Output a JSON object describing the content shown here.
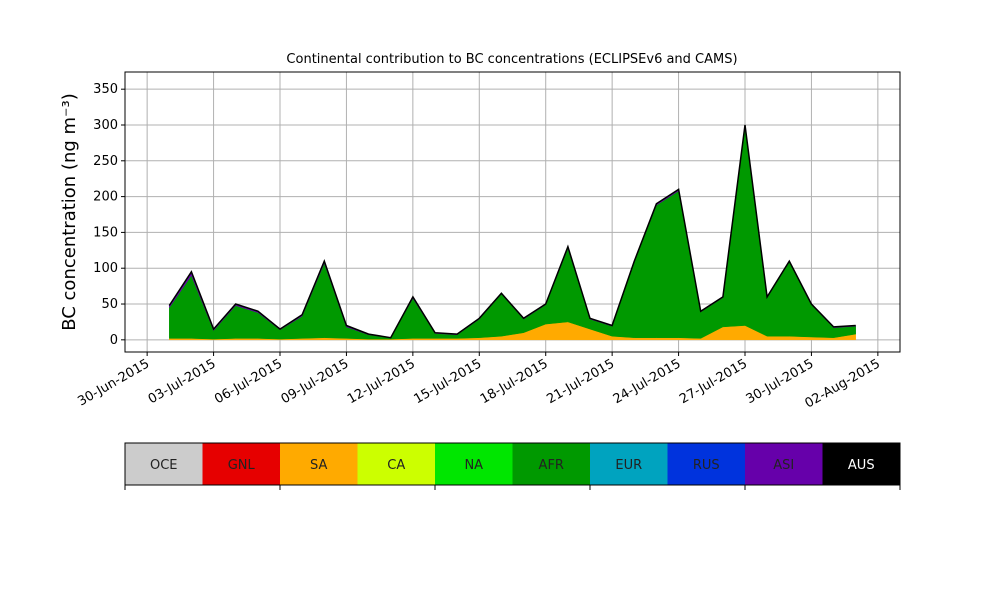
{
  "chart_data": {
    "type": "stacked_area",
    "title": "Continental contribution to BC concentrations (ECLIPSEv6 and CAMS)",
    "ylabel": "BC concentration (ng m⁻³)",
    "x": [
      "2015-07-01",
      "2015-07-02",
      "2015-07-03",
      "2015-07-04",
      "2015-07-05",
      "2015-07-06",
      "2015-07-07",
      "2015-07-08",
      "2015-07-09",
      "2015-07-10",
      "2015-07-11",
      "2015-07-12",
      "2015-07-13",
      "2015-07-14",
      "2015-07-15",
      "2015-07-16",
      "2015-07-17",
      "2015-07-18",
      "2015-07-19",
      "2015-07-20",
      "2015-07-21",
      "2015-07-22",
      "2015-07-23",
      "2015-07-24",
      "2015-07-25",
      "2015-07-26",
      "2015-07-27",
      "2015-07-28",
      "2015-07-29",
      "2015-07-30",
      "2015-07-31",
      "2015-08-01"
    ],
    "series": [
      {
        "name": "SA",
        "color": "#ffaa00",
        "values": [
          2,
          2,
          1,
          2,
          2,
          1,
          2,
          3,
          2,
          1,
          1,
          2,
          2,
          2,
          3,
          5,
          10,
          22,
          25,
          15,
          5,
          3,
          3,
          3,
          2,
          18,
          20,
          5,
          5,
          4,
          3,
          8
        ]
      },
      {
        "name": "AFR",
        "color": "#009900",
        "values": [
          43,
          88,
          12,
          46,
          36,
          13,
          31,
          104,
          16,
          6,
          2,
          56,
          7,
          5,
          26,
          59,
          19,
          27,
          103,
          14,
          14,
          106,
          185,
          205,
          37,
          41,
          278,
          54,
          104,
          45,
          14,
          11
        ]
      },
      {
        "name": "ASI",
        "color": "#6600aa",
        "values": [
          3,
          5,
          2,
          2,
          2,
          1,
          2,
          3,
          2,
          1,
          0,
          2,
          1,
          1,
          1,
          1,
          1,
          1,
          2,
          1,
          1,
          1,
          2,
          2,
          1,
          1,
          2,
          1,
          1,
          1,
          1,
          1
        ]
      }
    ],
    "xlim": [
      "2015-06-29",
      "2015-08-03"
    ],
    "xticks": [
      {
        "value": "2015-06-30",
        "label": "30-Jun-2015"
      },
      {
        "value": "2015-07-03",
        "label": "03-Jul-2015"
      },
      {
        "value": "2015-07-06",
        "label": "06-Jul-2015"
      },
      {
        "value": "2015-07-09",
        "label": "09-Jul-2015"
      },
      {
        "value": "2015-07-12",
        "label": "12-Jul-2015"
      },
      {
        "value": "2015-07-15",
        "label": "15-Jul-2015"
      },
      {
        "value": "2015-07-18",
        "label": "18-Jul-2015"
      },
      {
        "value": "2015-07-21",
        "label": "21-Jul-2015"
      },
      {
        "value": "2015-07-24",
        "label": "24-Jul-2015"
      },
      {
        "value": "2015-07-27",
        "label": "27-Jul-2015"
      },
      {
        "value": "2015-07-30",
        "label": "30-Jul-2015"
      },
      {
        "value": "2015-08-02",
        "label": "02-Aug-2015"
      }
    ],
    "ylim": [
      -17,
      374
    ],
    "yticks": [
      0,
      50,
      100,
      150,
      200,
      250,
      300,
      350
    ],
    "grid": true,
    "colorbar": {
      "labels": [
        "OCE",
        "GNL",
        "SA",
        "CA",
        "NA",
        "AFR",
        "EUR",
        "RUS",
        "ASI",
        "AUS"
      ],
      "colors": [
        "#cccccc",
        "#e60000",
        "#ffaa00",
        "#ccff00",
        "#00e600",
        "#009900",
        "#00a3bf",
        "#0033dd",
        "#6600aa",
        "#000000"
      ]
    }
  }
}
